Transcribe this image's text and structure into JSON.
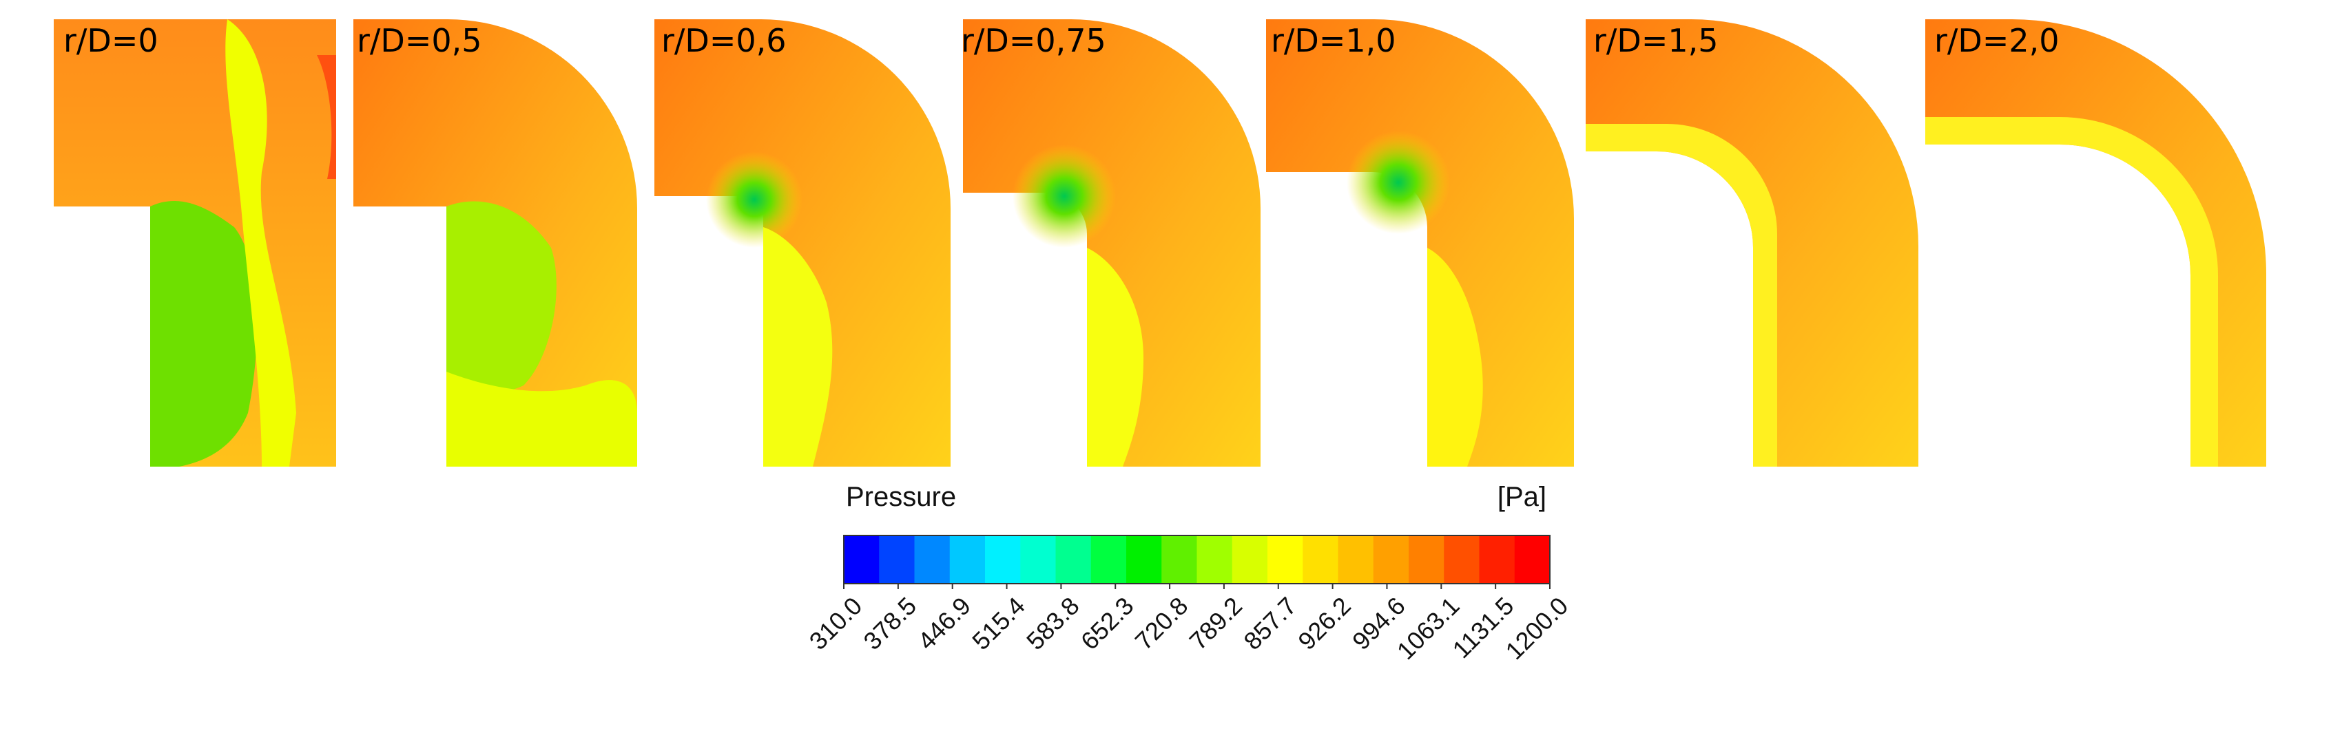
{
  "panels": [
    {
      "label": "r/D=0",
      "r_over_D": 0
    },
    {
      "label": "r/D=0,5",
      "r_over_D": 0.5
    },
    {
      "label": "r/D=0,6",
      "r_over_D": 0.6
    },
    {
      "label": "r/D=0,75",
      "r_over_D": 0.75
    },
    {
      "label": "r/D=1,0",
      "r_over_D": 1.0
    },
    {
      "label": "r/D=1,5",
      "r_over_D": 1.5
    },
    {
      "label": "r/D=2,0",
      "r_over_D": 2.0
    }
  ],
  "colorbar": {
    "title": "Pressure",
    "unit": "[Pa]",
    "ticks": [
      "310.0",
      "378.5",
      "446.9",
      "515.4",
      "583.8",
      "652.3",
      "720.8",
      "789.2",
      "857.7",
      "926.2",
      "994.6",
      "1063.1",
      "1131.5",
      "1200.0"
    ],
    "min": 310.0,
    "max": 1200.0,
    "colors": [
      "#0000ff",
      "#0044ff",
      "#0088ff",
      "#00c8ff",
      "#00f0ff",
      "#00ffd0",
      "#00ff90",
      "#00ff40",
      "#00f000",
      "#60f000",
      "#a0ff00",
      "#d8ff00",
      "#ffff00",
      "#ffe000",
      "#ffc000",
      "#ffa000",
      "#ff8000",
      "#ff5000",
      "#ff2000",
      "#ff0000"
    ]
  }
}
